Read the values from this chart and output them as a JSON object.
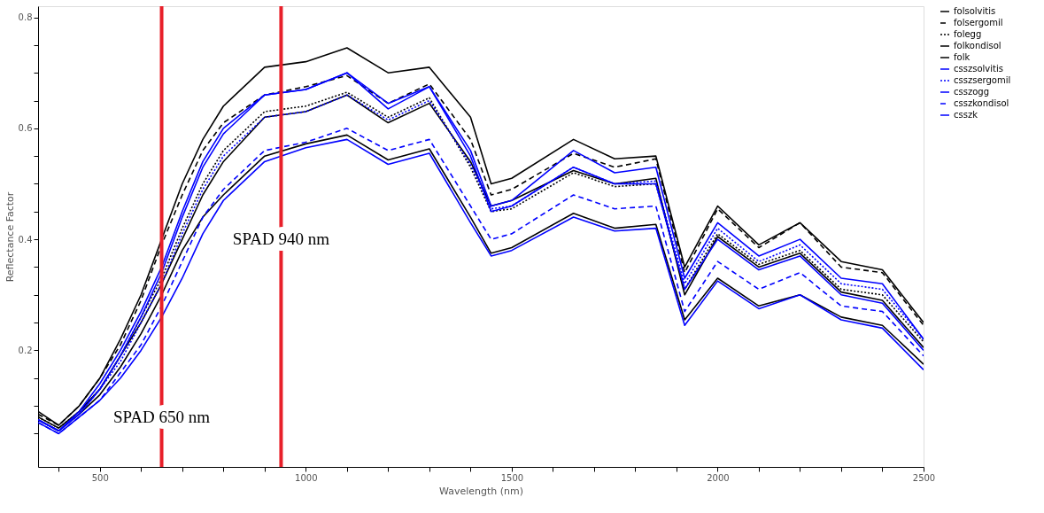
{
  "chart_data": {
    "type": "line",
    "xlabel": "Wavelength (nm)",
    "ylabel": "Reflectance Factor",
    "x": [
      350,
      400,
      450,
      500,
      550,
      600,
      650,
      700,
      750,
      800,
      900,
      1000,
      1100,
      1200,
      1300,
      1400,
      1450,
      1500,
      1650,
      1750,
      1850,
      1920,
      2000,
      2100,
      2200,
      2300,
      2400,
      2500
    ],
    "xlim": [
      350,
      2500
    ],
    "xticks": [
      {
        "value": 400,
        "label": null
      },
      500,
      {
        "value": 600,
        "label": null
      },
      {
        "value": 700,
        "label": null
      },
      {
        "value": 800,
        "label": null
      },
      {
        "value": 900,
        "label": null
      },
      1000,
      {
        "value": 1100,
        "label": null
      },
      {
        "value": 1200,
        "label": null
      },
      {
        "value": 1300,
        "label": null
      },
      {
        "value": 1400,
        "label": null
      },
      1500,
      {
        "value": 1600,
        "label": null
      },
      {
        "value": 1700,
        "label": null
      },
      {
        "value": 1800,
        "label": null
      },
      {
        "value": 1900,
        "label": null
      },
      2000,
      {
        "value": 2100,
        "label": null
      },
      {
        "value": 2200,
        "label": null
      },
      {
        "value": 2300,
        "label": null
      },
      {
        "value": 2400,
        "label": null
      },
      2500
    ],
    "ylim": [
      -0.01,
      0.82
    ],
    "yticks": [
      {
        "value": 0.05,
        "label": null
      },
      {
        "value": 0.1,
        "label": null
      },
      {
        "value": 0.15,
        "label": null
      },
      0.2,
      {
        "value": 0.25,
        "label": null
      },
      {
        "value": 0.3,
        "label": null
      },
      {
        "value": 0.35,
        "label": null
      },
      0.4,
      {
        "value": 0.45,
        "label": null
      },
      {
        "value": 0.5,
        "label": null
      },
      {
        "value": 0.55,
        "label": null
      },
      0.6,
      {
        "value": 0.65,
        "label": null
      },
      {
        "value": 0.7,
        "label": null
      },
      {
        "value": 0.75,
        "label": null
      },
      0.8
    ],
    "grid": false,
    "legend": "top right",
    "series": [
      {
        "name": "folsolvitis",
        "color": "#000000",
        "line_style": "solid",
        "values": [
          0.09,
          0.065,
          0.1,
          0.15,
          0.22,
          0.3,
          0.4,
          0.5,
          0.58,
          0.64,
          0.71,
          0.72,
          0.745,
          0.7,
          0.71,
          0.62,
          0.5,
          0.51,
          0.58,
          0.545,
          0.55,
          0.35,
          0.46,
          0.39,
          0.43,
          0.36,
          0.345,
          0.25
        ]
      },
      {
        "name": "folsergomil",
        "color": "#000000",
        "line_style": "dashed",
        "values": [
          0.085,
          0.065,
          0.1,
          0.15,
          0.21,
          0.29,
          0.39,
          0.48,
          0.56,
          0.61,
          0.66,
          0.675,
          0.695,
          0.645,
          0.68,
          0.58,
          0.48,
          0.49,
          0.555,
          0.53,
          0.545,
          0.34,
          0.455,
          0.385,
          0.43,
          0.35,
          0.34,
          0.245
        ]
      },
      {
        "name": "folegg",
        "color": "#000000",
        "line_style": "dotted",
        "values": [
          0.08,
          0.06,
          0.09,
          0.13,
          0.19,
          0.26,
          0.33,
          0.42,
          0.5,
          0.56,
          0.63,
          0.64,
          0.665,
          0.62,
          0.655,
          0.53,
          0.45,
          0.455,
          0.52,
          0.495,
          0.5,
          0.31,
          0.41,
          0.355,
          0.38,
          0.31,
          0.3,
          0.215
        ]
      },
      {
        "name": "folkondisol",
        "color": "#000000",
        "line_style": "solid",
        "values": [
          0.08,
          0.06,
          0.09,
          0.13,
          0.19,
          0.25,
          0.32,
          0.4,
          0.48,
          0.54,
          0.62,
          0.63,
          0.66,
          0.61,
          0.645,
          0.54,
          0.46,
          0.47,
          0.524,
          0.5,
          0.51,
          0.3,
          0.405,
          0.35,
          0.375,
          0.305,
          0.29,
          0.205
        ]
      },
      {
        "name": "folk",
        "color": "#000000",
        "line_style": "solid",
        "values": [
          0.075,
          0.055,
          0.085,
          0.12,
          0.17,
          0.23,
          0.3,
          0.38,
          0.44,
          0.48,
          0.55,
          0.572,
          0.588,
          0.543,
          0.563,
          0.44,
          0.375,
          0.385,
          0.447,
          0.42,
          0.427,
          0.255,
          0.33,
          0.28,
          0.3,
          0.26,
          0.245,
          0.175
        ]
      },
      {
        "name": "csszsolvitis",
        "color": "#0000ff",
        "line_style": "solid",
        "values": [
          0.075,
          0.055,
          0.09,
          0.14,
          0.2,
          0.27,
          0.35,
          0.45,
          0.54,
          0.6,
          0.66,
          0.67,
          0.7,
          0.645,
          0.675,
          0.56,
          0.46,
          0.47,
          0.56,
          0.52,
          0.53,
          0.33,
          0.43,
          0.37,
          0.4,
          0.33,
          0.32,
          0.22
        ]
      },
      {
        "name": "csszsergomil",
        "color": "#0000ff",
        "line_style": "dotted",
        "values": [
          0.075,
          0.055,
          0.085,
          0.13,
          0.18,
          0.25,
          0.32,
          0.41,
          0.49,
          0.55,
          0.62,
          0.63,
          0.66,
          0.615,
          0.65,
          0.535,
          0.455,
          0.46,
          0.53,
          0.5,
          0.505,
          0.32,
          0.42,
          0.36,
          0.39,
          0.32,
          0.31,
          0.22
        ]
      },
      {
        "name": "csszogg",
        "color": "#0000ff",
        "line_style": "solid",
        "values": [
          0.075,
          0.055,
          0.085,
          0.13,
          0.19,
          0.26,
          0.34,
          0.44,
          0.53,
          0.59,
          0.66,
          0.67,
          0.7,
          0.635,
          0.675,
          0.55,
          0.45,
          0.46,
          0.53,
          0.5,
          0.5,
          0.31,
          0.4,
          0.345,
          0.37,
          0.3,
          0.285,
          0.2
        ]
      },
      {
        "name": "csszkondisol",
        "color": "#0000ff",
        "line_style": "dashed",
        "values": [
          0.07,
          0.05,
          0.08,
          0.11,
          0.16,
          0.21,
          0.28,
          0.36,
          0.44,
          0.49,
          0.56,
          0.575,
          0.6,
          0.56,
          0.58,
          0.46,
          0.4,
          0.41,
          0.48,
          0.455,
          0.46,
          0.27,
          0.36,
          0.31,
          0.34,
          0.28,
          0.27,
          0.19
        ]
      },
      {
        "name": "csszk",
        "color": "#0000ff",
        "line_style": "solid",
        "values": [
          0.07,
          0.05,
          0.08,
          0.11,
          0.15,
          0.2,
          0.26,
          0.33,
          0.41,
          0.47,
          0.54,
          0.565,
          0.58,
          0.535,
          0.555,
          0.43,
          0.37,
          0.38,
          0.44,
          0.415,
          0.42,
          0.245,
          0.325,
          0.275,
          0.3,
          0.255,
          0.24,
          0.165
        ]
      }
    ],
    "ref_lines": [
      {
        "axis": "x",
        "value": 650,
        "color": "#e8202a"
      },
      {
        "axis": "x",
        "value": 940,
        "color": "#e8202a"
      }
    ],
    "annotations": [
      {
        "text": "SPAD 650 nm",
        "x": 650,
        "y": 0.08
      },
      {
        "text": "SPAD 940 nm",
        "x": 940,
        "y": 0.4
      }
    ]
  }
}
